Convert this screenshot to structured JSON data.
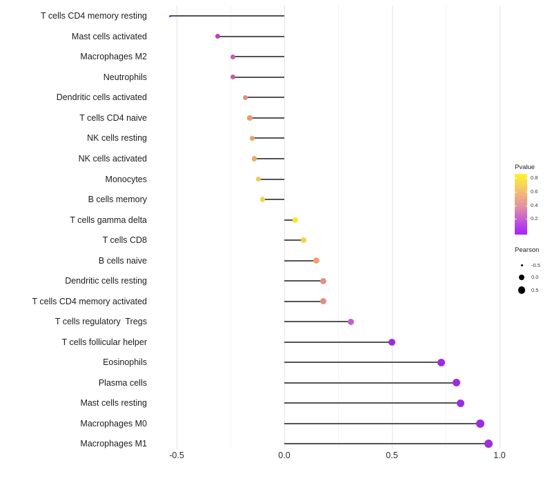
{
  "chart_data": {
    "type": "scatter",
    "variant": "horizontal-lollipop",
    "title": "",
    "xlabel": "",
    "ylabel": "",
    "xlim": [
      -0.62,
      1.04
    ],
    "x_major_ticks": [
      -0.5,
      0.0,
      0.5,
      1.0
    ],
    "x_tick_labels": [
      "-0.5",
      "0.0",
      "0.5",
      "1.0"
    ],
    "x_minor_ticks": [
      -0.25,
      0.25,
      0.75
    ],
    "grid": true,
    "color_encodes": "Pvalue",
    "size_encodes": "Pearson",
    "stem_color": "#525252",
    "points": [
      {
        "label": "T cells CD4 memory resting",
        "pearson": -0.53,
        "size": 3,
        "color": "#8626df"
      },
      {
        "label": "Mast cells activated",
        "pearson": -0.31,
        "size": 7,
        "color": "#b843c4"
      },
      {
        "label": "Macrophages M2",
        "pearson": -0.24,
        "size": 7,
        "color": "#c75fb2"
      },
      {
        "label": "Neutrophils",
        "pearson": -0.24,
        "size": 7,
        "color": "#c65fa4"
      },
      {
        "label": "Dendritic cells activated",
        "pearson": -0.18,
        "size": 7.3,
        "color": "#e2907a"
      },
      {
        "label": "T cells CD4 naive",
        "pearson": -0.16,
        "size": 7.3,
        "color": "#e89b6f"
      },
      {
        "label": "NK cells resting",
        "pearson": -0.15,
        "size": 7.3,
        "color": "#eaa168"
      },
      {
        "label": "NK cells activated",
        "pearson": -0.14,
        "size": 7.3,
        "color": "#efaa61"
      },
      {
        "label": "Monocytes",
        "pearson": -0.12,
        "size": 7.3,
        "color": "#f3c654"
      },
      {
        "label": "B cells memory",
        "pearson": -0.1,
        "size": 7.3,
        "color": "#f5d44a"
      },
      {
        "label": "T cells gamma delta",
        "pearson": 0.05,
        "size": 8,
        "color": "#fbe828"
      },
      {
        "label": "T cells CD8",
        "pearson": 0.09,
        "size": 8.7,
        "color": "#f5cf50"
      },
      {
        "label": "B cells naive",
        "pearson": 0.15,
        "size": 9.3,
        "color": "#eda26d"
      },
      {
        "label": "Dendritic cells resting",
        "pearson": 0.18,
        "size": 9.3,
        "color": "#e39080"
      },
      {
        "label": "T cells CD4 memory activated",
        "pearson": 0.18,
        "size": 9.3,
        "color": "#e28f80"
      },
      {
        "label": "T cells regulatory  Tregs",
        "pearson": 0.31,
        "size": 9.3,
        "color": "#c45ed0"
      },
      {
        "label": "T cells follicular helper",
        "pearson": 0.5,
        "size": 10,
        "color": "#9b2be0"
      },
      {
        "label": "Eosinophils",
        "pearson": 0.73,
        "size": 11,
        "color": "#9c2be2"
      },
      {
        "label": "Plasma cells",
        "pearson": 0.8,
        "size": 11,
        "color": "#9d2be2"
      },
      {
        "label": "Mast cells resting",
        "pearson": 0.82,
        "size": 11.3,
        "color": "#9d2be2"
      },
      {
        "label": "Macrophages M0",
        "pearson": 0.91,
        "size": 11.7,
        "color": "#9c2dde"
      },
      {
        "label": "Macrophages M1",
        "pearson": 0.95,
        "size": 12,
        "color": "#9c2edb"
      }
    ],
    "legends": {
      "pvalue": {
        "title": "Pvalue",
        "tick_labels": [
          "0.8",
          "0.6",
          "0.4",
          "0.2"
        ],
        "gradient_stops": [
          {
            "color": "#fcf228",
            "pos": 0
          },
          {
            "color": "#f7d55b",
            "pos": 18
          },
          {
            "color": "#efac84",
            "pos": 38
          },
          {
            "color": "#e28fa4",
            "pos": 55
          },
          {
            "color": "#c964cc",
            "pos": 72
          },
          {
            "color": "#b23beb",
            "pos": 88
          },
          {
            "color": "#a524f8",
            "pos": 100
          }
        ]
      },
      "pearson": {
        "title": "Pearson",
        "items": [
          {
            "label": "-0.5",
            "size": 3
          },
          {
            "label": "0.0",
            "size": 8
          },
          {
            "label": "0.5",
            "size": 10.5
          }
        ]
      }
    }
  }
}
